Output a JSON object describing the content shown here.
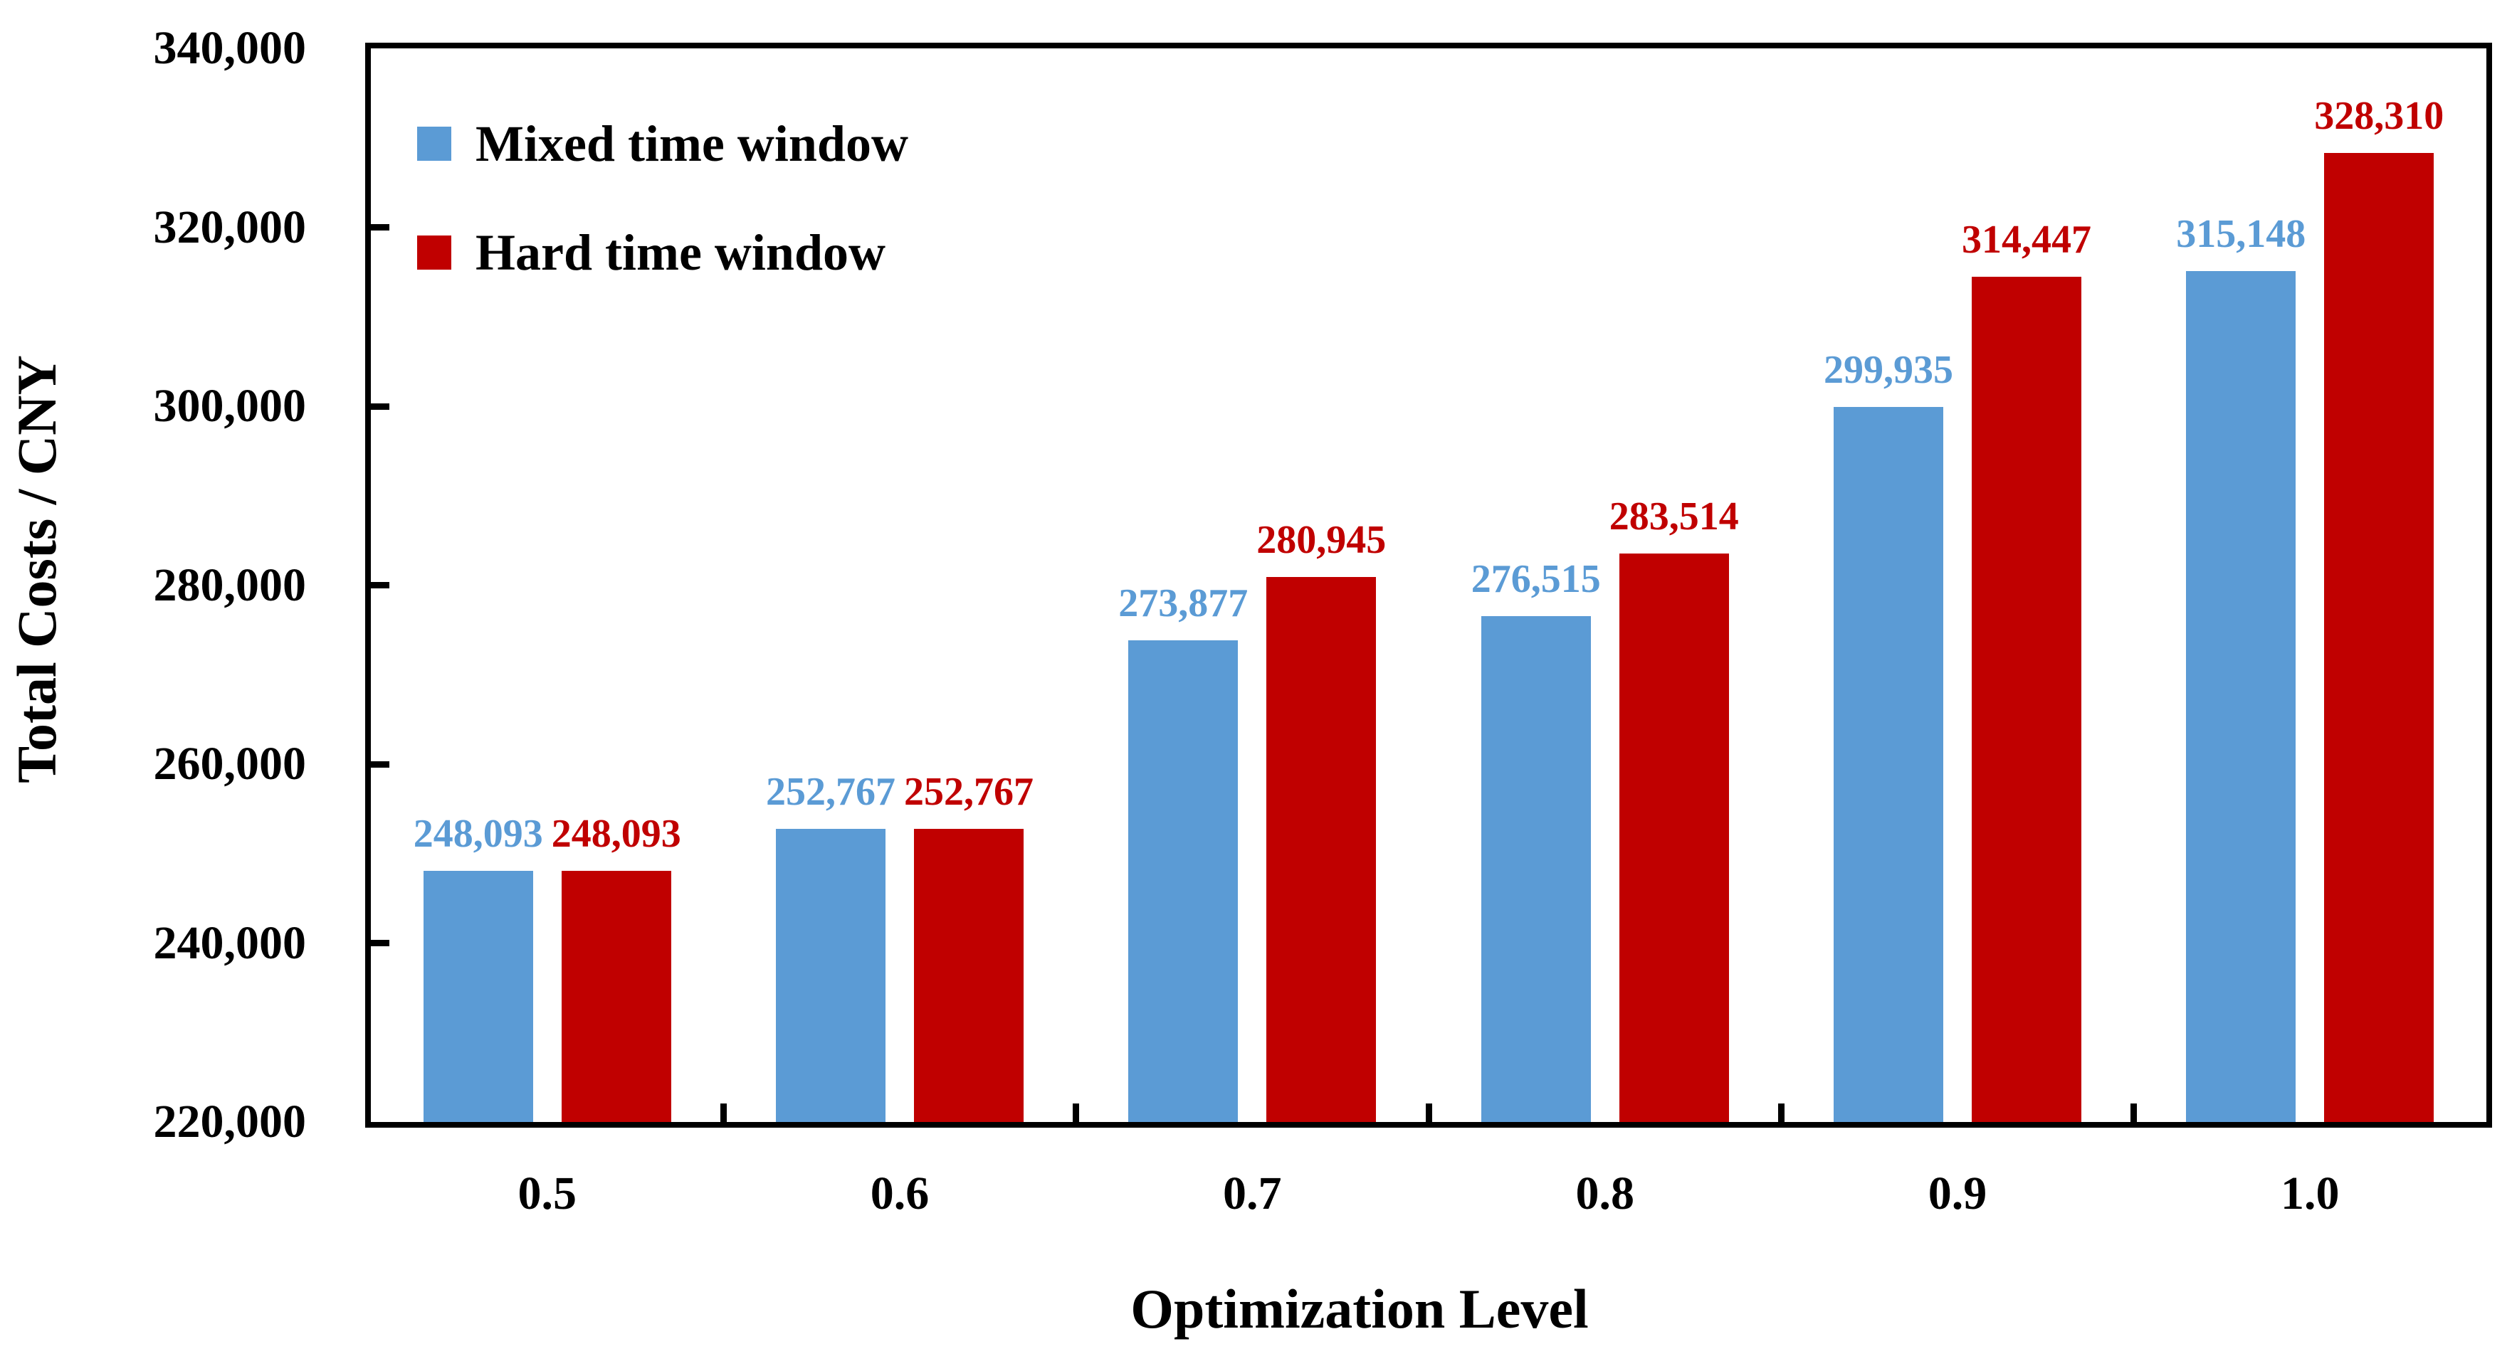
{
  "figure": {
    "background_color": "#FFFFFF",
    "axis_color": "#000000",
    "text_color": "#000000"
  },
  "chart_data": {
    "type": "bar",
    "title": "",
    "xlabel": "Optimization Level",
    "ylabel": "Total Costs / CNY",
    "categories": [
      "0.5",
      "0.6",
      "0.7",
      "0.8",
      "0.9",
      "1.0"
    ],
    "series": [
      {
        "name": "Mixed time window",
        "color": "#5B9BD5",
        "values": [
          248093,
          252767,
          273877,
          276515,
          299935,
          315148
        ],
        "value_labels": [
          "248,093",
          "252,767",
          "273,877",
          "276,515",
          "299,935",
          "315,148"
        ]
      },
      {
        "name": "Hard time window",
        "color": "#C00000",
        "values": [
          248093,
          252767,
          280945,
          283514,
          314447,
          328310
        ],
        "value_labels": [
          "248,093",
          "252,767",
          "280,945",
          "283,514",
          "314,447",
          "328,310"
        ]
      }
    ],
    "ylim": [
      220000,
      340000
    ],
    "ytick_step": 20000,
    "yticks": [
      {
        "value": 220000,
        "label": "220,000"
      },
      {
        "value": 240000,
        "label": "240,000"
      },
      {
        "value": 260000,
        "label": "260,000"
      },
      {
        "value": 280000,
        "label": "280,000"
      },
      {
        "value": 300000,
        "label": "300,000"
      },
      {
        "value": 320000,
        "label": "320,000"
      },
      {
        "value": 340000,
        "label": "340,000"
      }
    ],
    "grid": false,
    "tick_direction": "inside",
    "legend_position": "top-left-inside",
    "bar_labels_shown": true
  }
}
